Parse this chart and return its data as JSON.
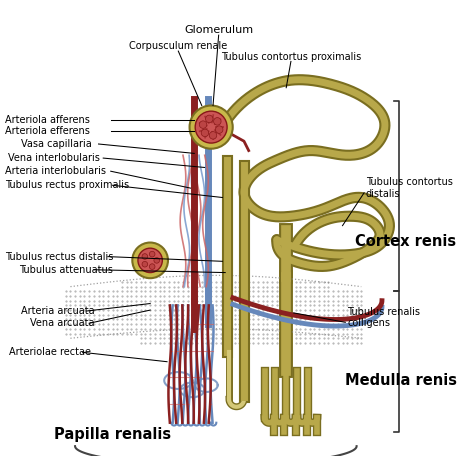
{
  "background_color": "#ffffff",
  "labels": {
    "glomerulum": "Glomerulum",
    "corpusculum": "Corpusculum renale",
    "tub_cont_prox": "Tubulus contortus proximalis",
    "tub_cont_dist": "Tubulus contortus\ndistalis",
    "arteriola_aff": "Arteriola afferens",
    "arteriola_eff": "Arteriola efferens",
    "vasa_cap": "Vasa capillaria",
    "vena_inter": "Vena interlobularis",
    "arteria_inter": "Arteria interlobularis",
    "tub_rect_prox": "Tubulus rectus proximalis",
    "tub_rect_dist": "Tubulus rectus distalis",
    "tub_att": "Tubulus attenuatus",
    "arteria_arc": "Arteria arcuata",
    "vena_arc": "Vena arcuata",
    "arteriole_rect": "Arteriolae rectae",
    "tub_ren_coll": "Tubulus renalis\ncolligens",
    "cortex": "Cortex renis",
    "medulla": "Medulla renis",
    "papilla": "Papilla renalis"
  },
  "colors": {
    "tubule": "#b8a84a",
    "tubule_dark": "#7a6e20",
    "artery": "#8b2020",
    "vein": "#6688bb",
    "capillary_red": "#cc6666",
    "capillary_blue": "#7799cc",
    "glom_outer": "#c8b050",
    "glom_inner": "#cc4444",
    "text": "#000000"
  },
  "figsize": [
    4.74,
    4.71
  ],
  "dpi": 100
}
